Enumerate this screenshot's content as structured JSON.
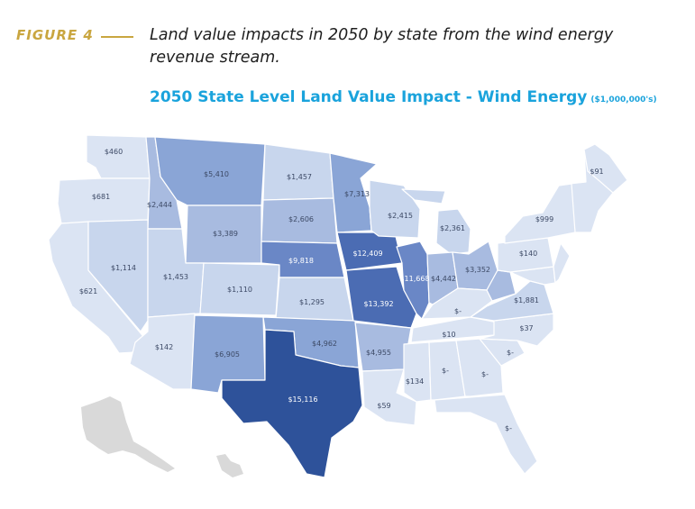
{
  "figure": {
    "label": "FIGURE 4",
    "caption": "Land value impacts in 2050 by state from the wind energy revenue stream."
  },
  "map": {
    "title": "2050 State Level Land Value Impact - Wind Energy",
    "units": "($1,000,000's)"
  },
  "colors": {
    "level1": "#dbe4f3",
    "level2": "#c8d6ed",
    "level3": "#a8bbe0",
    "level4": "#8aa5d6",
    "level5": "#6a87c6",
    "level6": "#4b6cb3",
    "level7": "#2e529a",
    "no_data": "#d9d9d9",
    "accent_gold": "#c9a640",
    "title_blue": "#1aa3dc"
  },
  "states": [
    {
      "code": "WA",
      "label": "$460",
      "level": 1
    },
    {
      "code": "OR",
      "label": "$681",
      "level": 1
    },
    {
      "code": "CA",
      "label": "$621",
      "level": 1
    },
    {
      "code": "ID",
      "label": "$2,444",
      "level": 3
    },
    {
      "code": "NV",
      "label": "$1,114",
      "level": 2
    },
    {
      "code": "MT",
      "label": "$5,410",
      "level": 4
    },
    {
      "code": "WY",
      "label": "$3,389",
      "level": 3
    },
    {
      "code": "UT",
      "label": "$1,453",
      "level": 2
    },
    {
      "code": "AZ",
      "label": "$142",
      "level": 1
    },
    {
      "code": "CO",
      "label": "$1,110",
      "level": 2
    },
    {
      "code": "NM",
      "label": "$6,905",
      "level": 4
    },
    {
      "code": "ND",
      "label": "$1,457",
      "level": 2
    },
    {
      "code": "SD",
      "label": "$2,606",
      "level": 3
    },
    {
      "code": "NE",
      "label": "$9,818",
      "level": 5
    },
    {
      "code": "KS",
      "label": "$1,295",
      "level": 2
    },
    {
      "code": "OK",
      "label": "$4,962",
      "level": 4
    },
    {
      "code": "TX",
      "label": "$15,116",
      "level": 7
    },
    {
      "code": "MN",
      "label": "$7,313",
      "level": 4
    },
    {
      "code": "IA",
      "label": "$12,409",
      "level": 6
    },
    {
      "code": "MO",
      "label": "$13,392",
      "level": 6
    },
    {
      "code": "AR",
      "label": "$4,955",
      "level": 3
    },
    {
      "code": "LA",
      "label": "$59",
      "level": 1
    },
    {
      "code": "WI",
      "label": "$2,415",
      "level": 2
    },
    {
      "code": "IL",
      "label": "$11,668",
      "level": 5
    },
    {
      "code": "MI",
      "label": "$2,361",
      "level": 2
    },
    {
      "code": "IN",
      "label": "$4,442",
      "level": 3
    },
    {
      "code": "OH",
      "label": "$3,352",
      "level": 3
    },
    {
      "code": "KY",
      "label": "$-",
      "level": 1
    },
    {
      "code": "TN",
      "label": "$10",
      "level": 1
    },
    {
      "code": "MS",
      "label": "$134",
      "level": 1
    },
    {
      "code": "AL",
      "label": "$-",
      "level": 1
    },
    {
      "code": "GA",
      "label": "$-",
      "level": 1
    },
    {
      "code": "FL",
      "label": "$-",
      "level": 1
    },
    {
      "code": "SC",
      "label": "$-",
      "level": 1
    },
    {
      "code": "NC",
      "label": "$37",
      "level": 1
    },
    {
      "code": "VA",
      "label": "$1,881",
      "level": 2
    },
    {
      "code": "WV",
      "label": "",
      "level": 3
    },
    {
      "code": "PA",
      "label": "$140",
      "level": 1
    },
    {
      "code": "NY",
      "label": "$999",
      "level": 1
    },
    {
      "code": "ME",
      "label": "$91",
      "level": 1
    }
  ]
}
